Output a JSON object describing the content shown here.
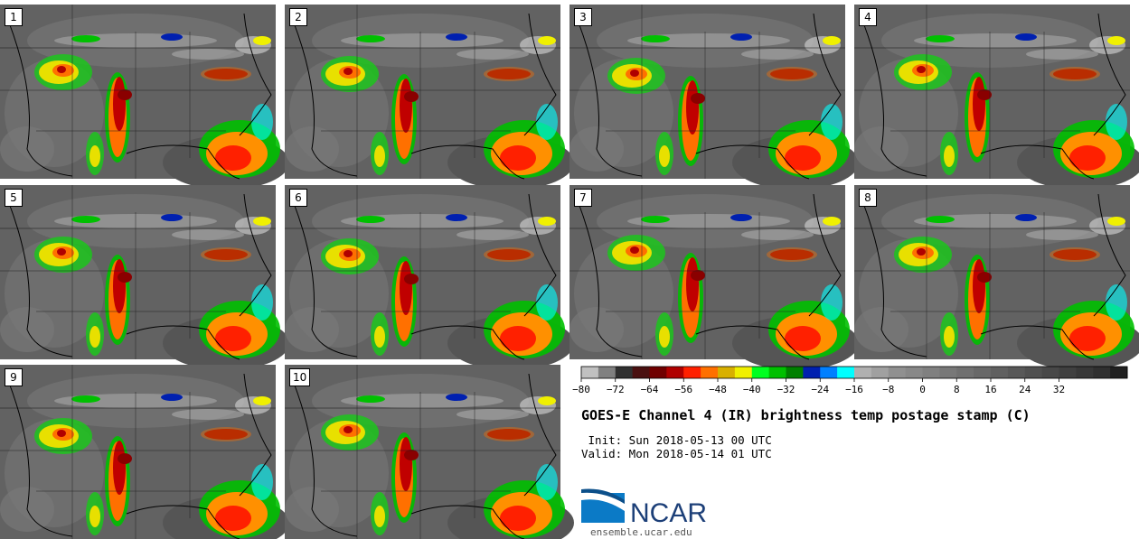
{
  "panels": [
    {
      "label": "1"
    },
    {
      "label": "2"
    },
    {
      "label": "3"
    },
    {
      "label": "4"
    },
    {
      "label": "5"
    },
    {
      "label": "6"
    },
    {
      "label": "7"
    },
    {
      "label": "8"
    },
    {
      "label": "9"
    },
    {
      "label": "10"
    }
  ],
  "colorbar": {
    "colors": [
      "#c0c0c0",
      "#808080",
      "#303030",
      "#4a1010",
      "#700000",
      "#b00000",
      "#ff2000",
      "#ff7000",
      "#d8b000",
      "#f0f000",
      "#00ff20",
      "#00c000",
      "#008000",
      "#0020b0",
      "#0080ff",
      "#00ffff",
      "#b0b0b0",
      "#a0a0a0",
      "#909090",
      "#888888",
      "#808080",
      "#787878",
      "#707070",
      "#686868",
      "#606060",
      "#585858",
      "#505050",
      "#484848",
      "#404040",
      "#383838",
      "#303030",
      "#202020"
    ],
    "tick_labels": [
      "−80",
      "−72",
      "−64",
      "−56",
      "−48",
      "−40",
      "−32",
      "−24",
      "−16",
      "−8",
      "0",
      "8",
      "16",
      "24",
      "32"
    ]
  },
  "title": "GOES-E Channel 4 (IR) brightness temp postage stamp (C)",
  "init_line": " Init: Sun 2018-05-13 00 UTC",
  "valid_line": "Valid: Mon 2018-05-14 01 UTC",
  "logo_text": "NCAR",
  "site": "ensemble.ucar.edu"
}
